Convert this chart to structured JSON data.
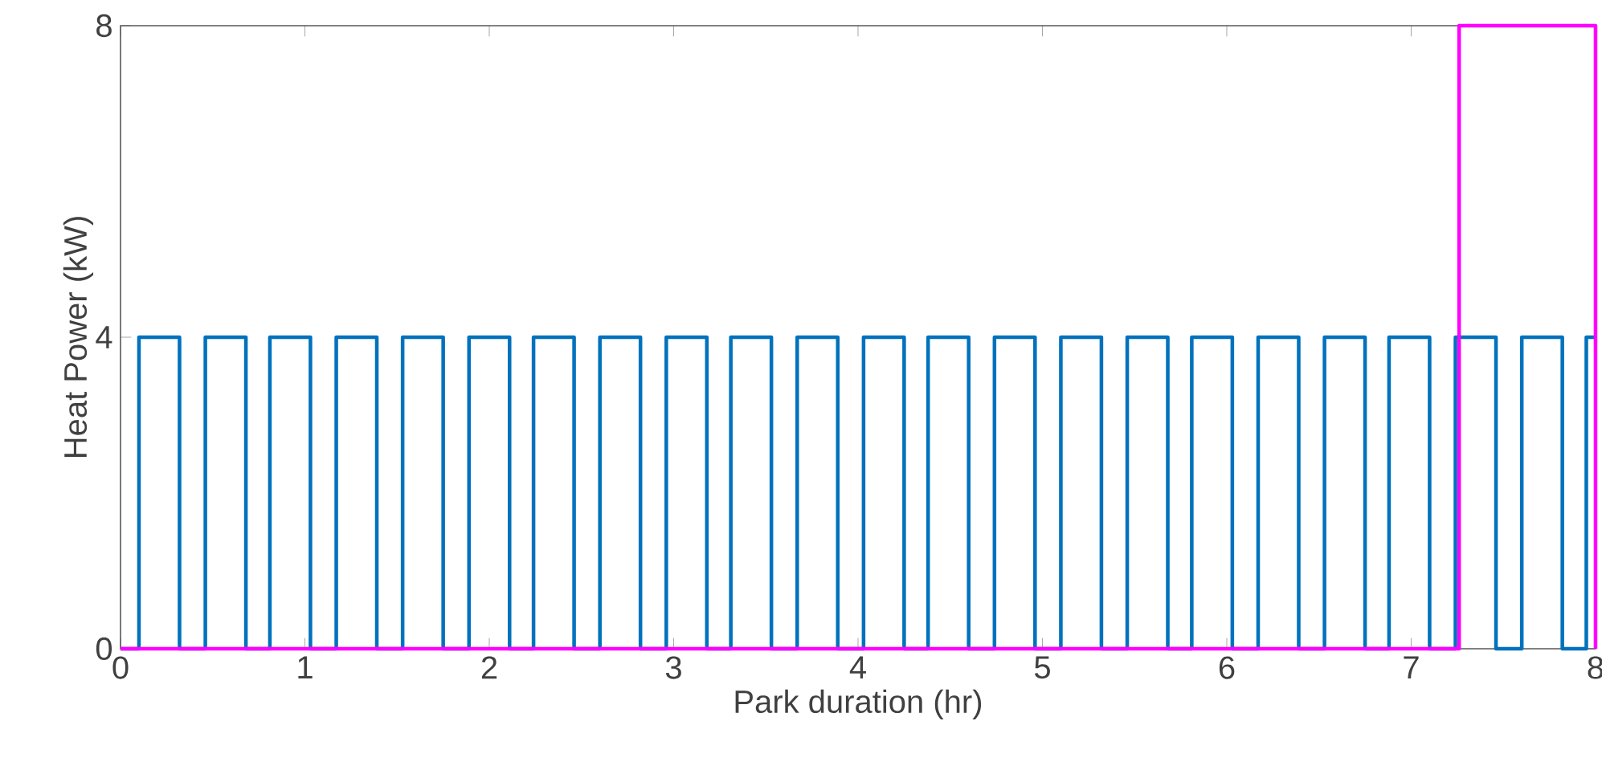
{
  "chart_data": {
    "type": "step",
    "xlabel": "Park duration (hr)",
    "ylabel": "Heat Power (kW)",
    "xlim": [
      0,
      8
    ],
    "ylim": [
      0,
      8
    ],
    "xticks": [
      0,
      1,
      2,
      3,
      4,
      5,
      6,
      7,
      8
    ],
    "yticks": [
      0,
      4,
      8
    ],
    "series": [
      {
        "color": "#0072bd",
        "x": [
          0,
          0.1,
          0.32,
          0.46,
          0.68,
          0.81,
          1.03,
          1.17,
          1.39,
          1.53,
          1.75,
          1.89,
          2.11,
          2.24,
          2.46,
          2.6,
          2.82,
          2.96,
          3.18,
          3.31,
          3.53,
          3.67,
          3.89,
          4.03,
          4.25,
          4.38,
          4.6,
          4.74,
          4.96,
          5.1,
          5.32,
          5.46,
          5.68,
          5.81,
          6.03,
          6.17,
          6.39,
          6.53,
          6.75,
          6.88,
          7.1,
          7.24,
          7.46,
          7.6,
          7.82,
          7.95,
          8
        ],
        "values": [
          0,
          4,
          0,
          4,
          0,
          4,
          0,
          4,
          0,
          4,
          0,
          4,
          0,
          4,
          0,
          4,
          0,
          4,
          0,
          4,
          0,
          4,
          0,
          4,
          0,
          4,
          0,
          4,
          0,
          4,
          0,
          4,
          0,
          4,
          0,
          4,
          0,
          4,
          0,
          4,
          0,
          4,
          0,
          4,
          0,
          4,
          4
        ]
      },
      {
        "color": "#ff00ff",
        "x": [
          0,
          7.26,
          8
        ],
        "values": [
          0,
          8,
          0
        ]
      }
    ]
  }
}
